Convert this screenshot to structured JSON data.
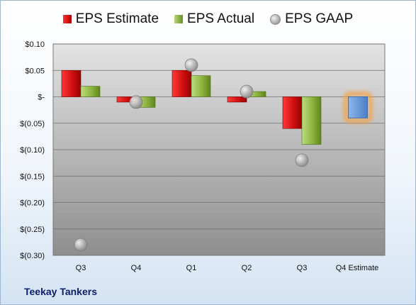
{
  "company": "Teekay Tankers",
  "chart_data": {
    "type": "bar",
    "categories": [
      "Q3",
      "Q4",
      "Q1",
      "Q2",
      "Q3",
      "Q4 Estimate"
    ],
    "yticks": [
      "$0.10",
      "$0.05",
      "$-",
      "$(0.05)",
      "$(0.10)",
      "$(0.15)",
      "$(0.20)",
      "$(0.25)",
      "$(0.30)"
    ],
    "ytick_values": [
      0.1,
      0.05,
      0,
      -0.05,
      -0.1,
      -0.15,
      -0.2,
      -0.25,
      -0.3
    ],
    "ylim": [
      -0.3,
      0.1
    ],
    "grid": true,
    "legend_position": "top-center",
    "series": [
      {
        "name": "EPS Estimate",
        "kind": "bar",
        "values": [
          0.05,
          -0.01,
          0.05,
          -0.01,
          -0.06,
          null
        ],
        "color": "#d01010"
      },
      {
        "name": "EPS Actual",
        "kind": "bar",
        "values": [
          0.02,
          -0.02,
          0.04,
          0.01,
          -0.09,
          null
        ],
        "color": "#8db43c"
      },
      {
        "name": "EPS GAAP",
        "kind": "marker",
        "values": [
          -0.28,
          -0.01,
          0.06,
          0.01,
          -0.12,
          null
        ],
        "color": "#a8a8a8"
      },
      {
        "name": "",
        "kind": "bar-highlight",
        "values": [
          null,
          null,
          null,
          null,
          null,
          -0.04
        ],
        "color": "#5b8fd6",
        "glow": "#f5a040"
      }
    ]
  }
}
